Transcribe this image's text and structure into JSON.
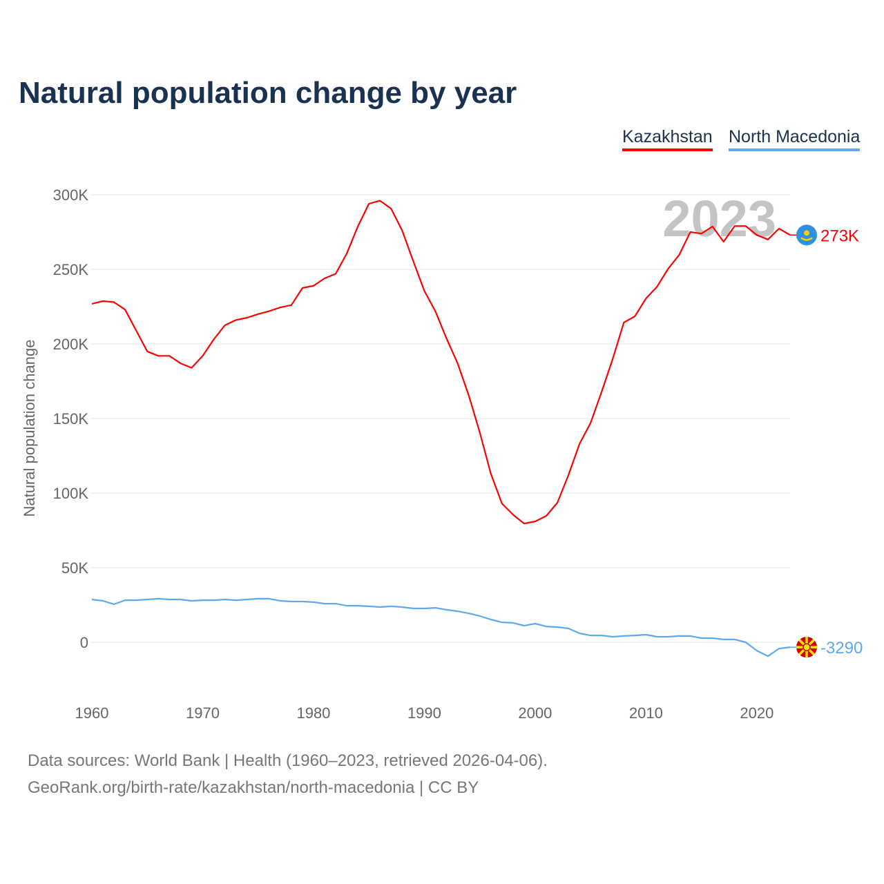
{
  "title": "Natural population change by year",
  "footer": {
    "line1": "Data sources: World Bank | Health (1960–2023, retrieved 2026-04-06).",
    "line2": "GeoRank.org/birth-rate/kazakhstan/north-macedonia | CC BY"
  },
  "chart_data": {
    "type": "line",
    "title": "Natural population change by year",
    "xlabel": "",
    "ylabel": "Natural population change",
    "ylim": [
      -25000,
      300000
    ],
    "xlim": [
      1960,
      2023
    ],
    "grid": true,
    "legend_placement": "top-right",
    "year_watermark": "2023",
    "x_ticks": [
      "1960",
      "1970",
      "1980",
      "1990",
      "2000",
      "2010",
      "2020"
    ],
    "y_ticks": [
      {
        "v": 0,
        "label": "0"
      },
      {
        "v": 50000,
        "label": "50K"
      },
      {
        "v": 100000,
        "label": "100K"
      },
      {
        "v": 150000,
        "label": "150K"
      },
      {
        "v": 200000,
        "label": "200K"
      },
      {
        "v": 250000,
        "label": "250K"
      },
      {
        "v": 300000,
        "label": "300K"
      }
    ],
    "x": [
      1960,
      1961,
      1962,
      1963,
      1964,
      1965,
      1966,
      1967,
      1968,
      1969,
      1970,
      1971,
      1972,
      1973,
      1974,
      1975,
      1976,
      1977,
      1978,
      1979,
      1980,
      1981,
      1982,
      1983,
      1984,
      1985,
      1986,
      1987,
      1988,
      1989,
      1990,
      1991,
      1992,
      1993,
      1994,
      1995,
      1996,
      1997,
      1998,
      1999,
      2000,
      2001,
      2002,
      2003,
      2004,
      2005,
      2006,
      2007,
      2008,
      2009,
      2010,
      2011,
      2012,
      2013,
      2014,
      2015,
      2016,
      2017,
      2018,
      2019,
      2020,
      2021,
      2022,
      2023
    ],
    "series": [
      {
        "name": "Kazakhstan",
        "color": "#ff0000",
        "end_label": "273K",
        "flag": "kazakhstan-flag",
        "values": [
          226900,
          228700,
          228000,
          223000,
          209000,
          195000,
          192000,
          192000,
          187000,
          184000,
          192000,
          203000,
          212500,
          216000,
          217600,
          220000,
          222000,
          224500,
          226000,
          237500,
          239000,
          244000,
          247000,
          260600,
          278700,
          294000,
          296000,
          290700,
          276000,
          255500,
          235600,
          221800,
          203700,
          187000,
          165700,
          140700,
          113000,
          93000,
          85600,
          79600,
          81000,
          84700,
          93500,
          112000,
          133000,
          147000,
          168000,
          190000,
          214400,
          218500,
          230500,
          238400,
          250400,
          259700,
          275000,
          274000,
          278700,
          268500,
          279000,
          279000,
          273000,
          270000,
          277300,
          273000
        ]
      },
      {
        "name": "North Macedonia",
        "color": "#5fa8ec",
        "end_label": "-3290",
        "flag": "north-macedonia-flag",
        "values": [
          28700,
          27800,
          25500,
          28200,
          28200,
          28700,
          29200,
          28700,
          28700,
          27800,
          28200,
          28200,
          28700,
          28200,
          28700,
          29200,
          29200,
          27800,
          27300,
          27300,
          26900,
          25900,
          25900,
          24500,
          24500,
          24100,
          23600,
          24100,
          23600,
          22700,
          22700,
          23100,
          21800,
          20800,
          19400,
          17600,
          15300,
          13400,
          13000,
          11100,
          12500,
          10600,
          10200,
          9300,
          6000,
          4600,
          4600,
          3700,
          4200,
          4600,
          5100,
          3700,
          3700,
          4200,
          4200,
          2800,
          2800,
          1900,
          1900,
          0,
          -5600,
          -9300,
          -4200,
          -3290
        ]
      }
    ]
  }
}
